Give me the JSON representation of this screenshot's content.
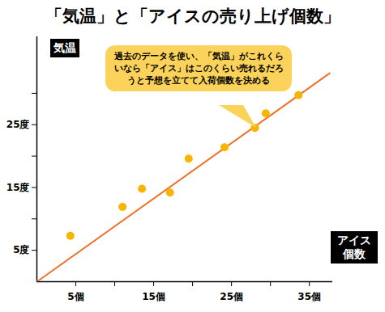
{
  "chart_data": {
    "type": "scatter",
    "title": "「気温」と「アイスの売り上げ個数」",
    "x_label": "アイス個数",
    "y_label": "気温",
    "annotation": "過去のデータを使い、「気温」がこれくらいなら「アイス」はこのくらい売れるだろうと予想を立てて入荷個数を決める",
    "xlim": [
      0,
      38
    ],
    "ylim": [
      0,
      39
    ],
    "xticks": [
      {
        "value": 5,
        "label": "5個"
      },
      {
        "value": 10,
        "label": null
      },
      {
        "value": 15,
        "label": "15個"
      },
      {
        "value": 20,
        "label": null
      },
      {
        "value": 25,
        "label": "25個"
      },
      {
        "value": 30,
        "label": null
      },
      {
        "value": 35,
        "label": "35個"
      }
    ],
    "yticks": [
      {
        "value": 5,
        "label": "5度"
      },
      {
        "value": 10,
        "label": null
      },
      {
        "value": 15,
        "label": "15度"
      },
      {
        "value": 20,
        "label": null
      },
      {
        "value": 25,
        "label": "25度"
      },
      {
        "value": 30,
        "label": null
      }
    ],
    "grid": false,
    "series": [
      {
        "type": "line",
        "color": "#f07028",
        "x": [
          0,
          37.6
        ],
        "values": [
          0,
          33.2
        ]
      },
      {
        "type": "scatter",
        "color": "#f7b500",
        "x": [
          4.3,
          11.0,
          13.5,
          17.1,
          19.5,
          24.1,
          28.0,
          29.4,
          33.6
        ],
        "values": [
          7.3,
          11.9,
          14.8,
          14.2,
          19.6,
          21.4,
          24.5,
          26.8,
          29.7
        ]
      }
    ]
  }
}
